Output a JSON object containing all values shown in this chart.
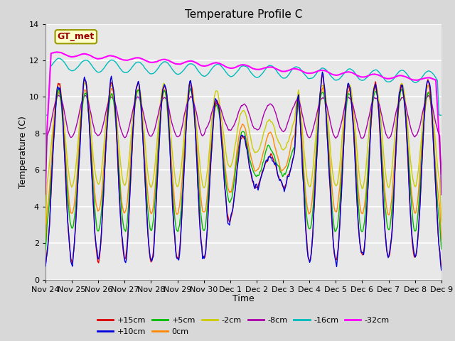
{
  "title": "Temperature Profile C",
  "xlabel": "Time",
  "ylabel": "Temperature (C)",
  "ylim": [
    0,
    14
  ],
  "series_colors": {
    "+15cm": "#dd0000",
    "+10cm": "#0000dd",
    "+5cm": "#00bb00",
    "0cm": "#ff8800",
    "-2cm": "#cccc00",
    "-8cm": "#aa00aa",
    "-16cm": "#00bbbb",
    "-32cm": "#ff00ff"
  },
  "legend_box_facecolor": "#ffffcc",
  "legend_box_edgecolor": "#999900",
  "legend_label_color": "#990000",
  "legend_label": "GT_met",
  "fig_facecolor": "#d8d8d8",
  "ax_facecolor": "#e8e8e8",
  "grid_color": "#ffffff",
  "tick_labels": [
    "Nov 24",
    "Nov 25",
    "Nov 26",
    "Nov 27",
    "Nov 28",
    "Nov 29",
    "Nov 30",
    "Dec 1",
    "Dec 2",
    "Dec 3",
    "Dec 4",
    "Dec 5",
    "Dec 6",
    "Dec 7",
    "Dec 8",
    "Dec 9"
  ],
  "num_points": 500,
  "random_seed": 7
}
